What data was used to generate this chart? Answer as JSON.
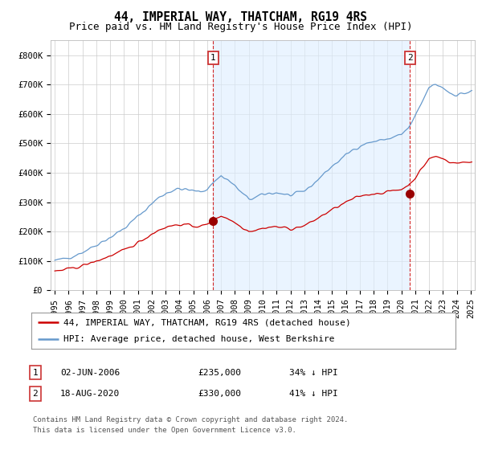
{
  "title": "44, IMPERIAL WAY, THATCHAM, RG19 4RS",
  "subtitle": "Price paid vs. HM Land Registry's House Price Index (HPI)",
  "yticks": [
    0,
    100000,
    200000,
    300000,
    400000,
    500000,
    600000,
    700000,
    800000
  ],
  "ytick_labels": [
    "£0",
    "£100K",
    "£200K",
    "£300K",
    "£400K",
    "£500K",
    "£600K",
    "£700K",
    "£800K"
  ],
  "xlim_start": 1994.7,
  "xlim_end": 2025.3,
  "ylim": [
    0,
    850000
  ],
  "purchase1_x": 2006.42,
  "purchase1_y": 235000,
  "purchase2_x": 2020.63,
  "purchase2_y": 330000,
  "legend_entry1": "44, IMPERIAL WAY, THATCHAM, RG19 4RS (detached house)",
  "legend_entry2": "HPI: Average price, detached house, West Berkshire",
  "table_row1": [
    "1",
    "02-JUN-2006",
    "£235,000",
    "34% ↓ HPI"
  ],
  "table_row2": [
    "2",
    "18-AUG-2020",
    "£330,000",
    "41% ↓ HPI"
  ],
  "footnote": "Contains HM Land Registry data © Crown copyright and database right 2024.\nThis data is licensed under the Open Government Licence v3.0.",
  "line_color_red": "#cc0000",
  "line_color_blue": "#6699cc",
  "shade_color": "#ddeeff",
  "dashed_line_color": "#cc0000",
  "marker_color": "#990000",
  "bg_color": "#ffffff",
  "grid_color": "#cccccc",
  "title_fontsize": 10.5,
  "subtitle_fontsize": 9,
  "tick_fontsize": 7.5,
  "legend_fontsize": 8,
  "table_fontsize": 8,
  "footnote_fontsize": 6.5,
  "hpi_keypoints_x": [
    1995.0,
    1995.5,
    1996.0,
    1996.5,
    1997.0,
    1997.5,
    1998.0,
    1998.5,
    1999.0,
    1999.5,
    2000.0,
    2000.5,
    2001.0,
    2001.5,
    2002.0,
    2002.5,
    2003.0,
    2003.5,
    2004.0,
    2004.5,
    2005.0,
    2005.5,
    2006.0,
    2006.5,
    2007.0,
    2007.5,
    2008.0,
    2008.5,
    2009.0,
    2009.5,
    2010.0,
    2010.5,
    2011.0,
    2011.5,
    2012.0,
    2012.5,
    2013.0,
    2013.5,
    2014.0,
    2014.5,
    2015.0,
    2015.5,
    2016.0,
    2016.5,
    2017.0,
    2017.5,
    2018.0,
    2018.5,
    2019.0,
    2019.5,
    2020.0,
    2020.5,
    2021.0,
    2021.5,
    2022.0,
    2022.5,
    2023.0,
    2023.5,
    2024.0,
    2024.5,
    2025.0
  ],
  "hpi_keypoints_y": [
    100000,
    105000,
    112000,
    120000,
    130000,
    142000,
    155000,
    168000,
    180000,
    195000,
    210000,
    230000,
    252000,
    272000,
    295000,
    315000,
    330000,
    340000,
    345000,
    342000,
    338000,
    335000,
    345000,
    370000,
    390000,
    375000,
    355000,
    330000,
    310000,
    315000,
    325000,
    330000,
    332000,
    328000,
    322000,
    328000,
    338000,
    355000,
    378000,
    400000,
    422000,
    440000,
    460000,
    478000,
    492000,
    500000,
    506000,
    510000,
    515000,
    522000,
    530000,
    550000,
    590000,
    640000,
    690000,
    700000,
    690000,
    672000,
    665000,
    670000,
    675000
  ],
  "red_keypoints_x": [
    1995.0,
    1995.5,
    1996.0,
    1996.5,
    1997.0,
    1997.5,
    1998.0,
    1998.5,
    1999.0,
    1999.5,
    2000.0,
    2000.5,
    2001.0,
    2001.5,
    2002.0,
    2002.5,
    2003.0,
    2003.5,
    2004.0,
    2004.5,
    2005.0,
    2005.5,
    2006.0,
    2006.5,
    2007.0,
    2007.5,
    2008.0,
    2008.5,
    2009.0,
    2009.5,
    2010.0,
    2010.5,
    2011.0,
    2011.5,
    2012.0,
    2012.5,
    2013.0,
    2013.5,
    2014.0,
    2014.5,
    2015.0,
    2015.5,
    2016.0,
    2016.5,
    2017.0,
    2017.5,
    2018.0,
    2018.5,
    2019.0,
    2019.5,
    2020.0,
    2020.5,
    2021.0,
    2021.5,
    2022.0,
    2022.5,
    2023.0,
    2023.5,
    2024.0,
    2024.5,
    2025.0
  ],
  "red_keypoints_y": [
    65000,
    68000,
    72000,
    77000,
    84000,
    91000,
    99000,
    108000,
    117000,
    126000,
    136000,
    148000,
    163000,
    176000,
    192000,
    205000,
    215000,
    220000,
    224000,
    222000,
    219000,
    217000,
    224000,
    240000,
    254000,
    244000,
    230000,
    215000,
    202000,
    205000,
    211000,
    215000,
    216000,
    213000,
    209000,
    213000,
    220000,
    231000,
    246000,
    260000,
    274000,
    286000,
    299000,
    310000,
    320000,
    325000,
    329000,
    331000,
    335000,
    339000,
    344000,
    357000,
    383000,
    415000,
    448000,
    455000,
    448000,
    437000,
    432000,
    435000,
    438000
  ]
}
